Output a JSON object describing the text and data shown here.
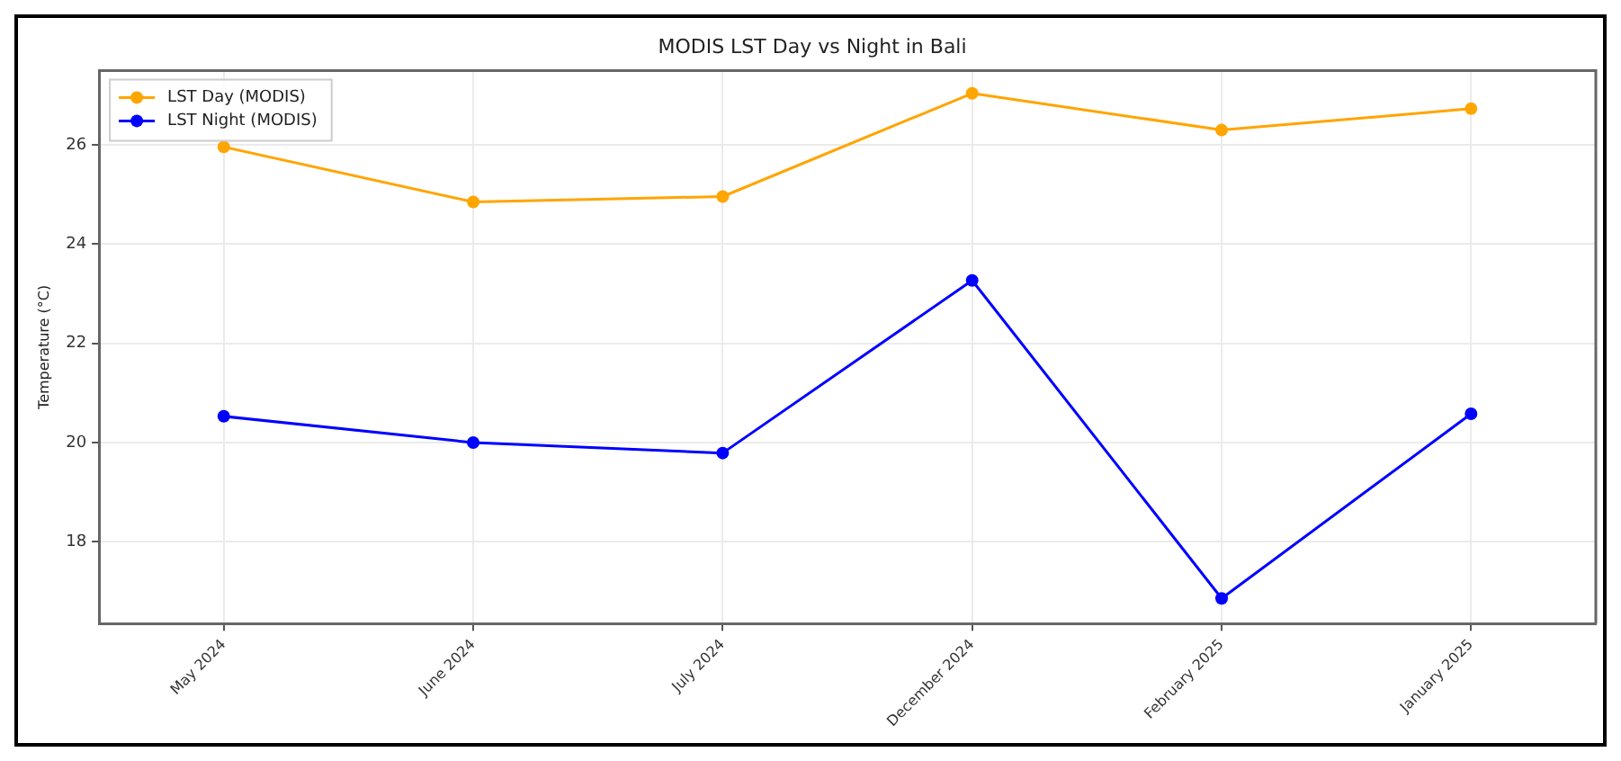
{
  "chart_data": {
    "type": "line",
    "title": "MODIS LST Day vs Night in Bali",
    "ylabel": "Temperature (°C)",
    "categories": [
      "May 2024",
      "June 2024",
      "July 2024",
      "December 2024",
      "February 2025",
      "January 2025"
    ],
    "series": [
      {
        "name": "LST Day (MODIS)",
        "color": "#ffa500",
        "values": [
          25.96,
          24.85,
          24.96,
          27.04,
          26.3,
          26.73
        ]
      },
      {
        "name": "LST Night (MODIS)",
        "color": "#0000ff",
        "values": [
          20.53,
          20.0,
          19.79,
          23.27,
          16.86,
          20.58
        ]
      }
    ],
    "ylim": [
      16.35,
      27.5
    ],
    "yticks": [
      18,
      20,
      22,
      24,
      26
    ],
    "grid": true,
    "legend": "top left",
    "marker": "circle",
    "line_style": "solid"
  }
}
